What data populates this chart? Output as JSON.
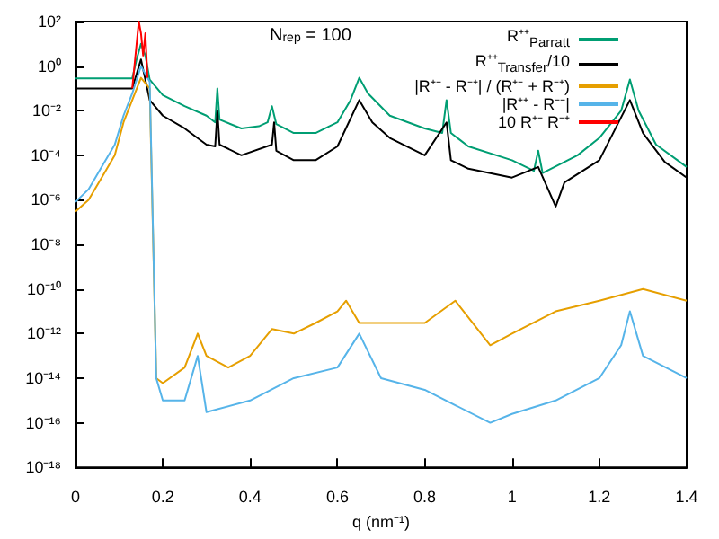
{
  "chart_data": {
    "type": "line",
    "xlabel": "q (nm⁻¹)",
    "annotations": [
      "N$_{rep}$ = 100"
    ],
    "xlim": [
      0,
      1.4
    ],
    "xticks": [
      0,
      0.2,
      0.4,
      0.6,
      0.8,
      1,
      1.2,
      1.4
    ],
    "ylim": [
      1e-18,
      100
    ],
    "log": true,
    "grid": false,
    "legend": "top right",
    "marker": "none",
    "line_style": "solid",
    "yticks": [
      {
        "value": 100,
        "label": "10²"
      },
      {
        "value": 1,
        "label": "10⁰"
      },
      {
        "value": 0.01,
        "label": "10⁻²"
      },
      {
        "value": 0.0001,
        "label": "10⁻⁴"
      },
      {
        "value": 1e-06,
        "label": "10⁻⁶"
      },
      {
        "value": 1e-08,
        "label": "10⁻⁸"
      },
      {
        "value": 1e-10,
        "label": "10⁻¹⁰"
      },
      {
        "value": 1e-12,
        "label": "10⁻¹²"
      },
      {
        "value": 1e-14,
        "label": "10⁻¹⁴"
      },
      {
        "value": 1e-16,
        "label": "10⁻¹⁶"
      },
      {
        "value": 1e-18,
        "label": "10⁻¹⁸"
      }
    ],
    "series": [
      {
        "name": "R⁺⁺$_{Parratt}$",
        "color": "#009e73",
        "x": [
          0,
          0.13,
          0.14,
          0.15,
          0.16,
          0.17,
          0.2,
          0.25,
          0.3,
          0.32,
          0.325,
          0.33,
          0.38,
          0.42,
          0.44,
          0.45,
          0.46,
          0.5,
          0.55,
          0.6,
          0.63,
          0.65,
          0.67,
          0.72,
          0.8,
          0.84,
          0.85,
          0.86,
          0.9,
          1.0,
          1.05,
          1.06,
          1.07,
          1.15,
          1.2,
          1.25,
          1.27,
          1.29,
          1.33,
          1.4
        ],
        "values": [
          0.28,
          0.28,
          2,
          10,
          3,
          0.25,
          0.05,
          0.016,
          0.006,
          0.003,
          0.1,
          0.004,
          0.0016,
          0.002,
          0.003,
          0.016,
          0.0025,
          0.001,
          0.001,
          0.003,
          0.03,
          0.3,
          0.06,
          0.006,
          0.0016,
          0.001,
          0.03,
          0.001,
          0.00025,
          6e-05,
          2e-05,
          0.00016,
          1.6e-05,
          0.0001,
          0.0006,
          0.01,
          0.25,
          0.01,
          0.0003,
          3e-05
        ]
      },
      {
        "name": "R⁺⁺$_{Transfer}$/10",
        "color": "#000000",
        "x": [
          0,
          0.13,
          0.15,
          0.17,
          0.2,
          0.25,
          0.3,
          0.32,
          0.325,
          0.33,
          0.38,
          0.45,
          0.455,
          0.46,
          0.5,
          0.55,
          0.6,
          0.65,
          0.68,
          0.72,
          0.8,
          0.85,
          0.86,
          0.9,
          1.0,
          1.06,
          1.1,
          1.12,
          1.2,
          1.27,
          1.3,
          1.35,
          1.4
        ],
        "values": [
          0.1,
          0.1,
          2,
          0.03,
          0.006,
          0.0016,
          0.0003,
          0.00025,
          0.01,
          0.0003,
          0.0001,
          0.0003,
          0.003,
          0.00016,
          6e-05,
          6e-05,
          0.00025,
          0.03,
          0.003,
          0.0006,
          0.0001,
          0.003,
          6e-05,
          2.5e-05,
          1e-05,
          3e-05,
          5e-07,
          6e-06,
          6e-05,
          0.03,
          0.001,
          5e-05,
          1e-05
        ]
      },
      {
        "name": "|R⁺⁻ - R⁻⁺| / (R⁺⁻ + R⁻⁺)",
        "color": "#e69f00",
        "x": [
          0,
          0.03,
          0.06,
          0.09,
          0.11,
          0.13,
          0.15,
          0.17,
          0.185,
          0.2,
          0.25,
          0.28,
          0.3,
          0.35,
          0.4,
          0.45,
          0.5,
          0.55,
          0.6,
          0.62,
          0.65,
          0.7,
          0.8,
          0.87,
          0.95,
          1.0,
          1.1,
          1.2,
          1.3,
          1.4
        ],
        "values": [
          3e-07,
          1e-06,
          1e-05,
          0.0001,
          0.003,
          0.03,
          0.3,
          0.1,
          1e-14,
          6e-15,
          3e-14,
          1e-12,
          1e-13,
          3e-14,
          1e-13,
          1.6e-12,
          1e-12,
          3e-12,
          1e-11,
          3e-11,
          3e-12,
          3e-12,
          3e-12,
          3e-11,
          3e-13,
          1e-12,
          1e-11,
          3e-11,
          1e-10,
          3e-11
        ]
      },
      {
        "name": "|R⁺⁺ - R⁻⁻|",
        "color": "#56b4e9",
        "x": [
          0,
          0.03,
          0.06,
          0.09,
          0.11,
          0.13,
          0.15,
          0.17,
          0.185,
          0.2,
          0.25,
          0.28,
          0.3,
          0.4,
          0.5,
          0.6,
          0.65,
          0.7,
          0.8,
          0.95,
          1.0,
          1.1,
          1.2,
          1.25,
          1.27,
          1.3,
          1.4
        ],
        "values": [
          8e-07,
          3e-06,
          3e-05,
          0.0003,
          0.006,
          0.06,
          1,
          0.2,
          1e-14,
          1e-15,
          1e-15,
          1e-13,
          3e-16,
          1e-15,
          1e-14,
          3e-14,
          1e-12,
          1e-14,
          3e-15,
          1e-16,
          2.5e-16,
          1e-15,
          1e-14,
          3e-13,
          1e-11,
          1e-13,
          1e-14
        ]
      },
      {
        "name": "10 R⁺⁻ R⁻⁺",
        "color": "#ff0000",
        "x": [
          0.13,
          0.14,
          0.145,
          0.15,
          0.155,
          0.16,
          0.165
        ],
        "values": [
          0.1,
          10,
          100,
          30,
          3,
          30,
          0.3
        ]
      }
    ]
  }
}
